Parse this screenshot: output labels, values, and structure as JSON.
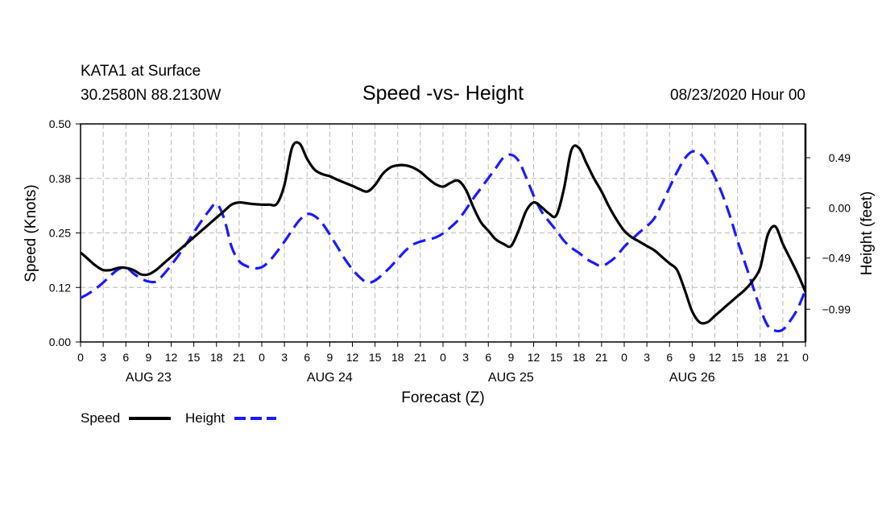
{
  "header": {
    "station": "KATA1 at Surface",
    "location": "30.2580N 88.2130W",
    "title": "Speed -vs- Height",
    "datetime": "08/23/2020 Hour 00"
  },
  "chart_data": {
    "type": "line",
    "title": "Speed -vs- Height",
    "xlabel": "Forecast (Z)",
    "ylabel_left": "Speed (Knots)",
    "ylabel_right": "Height (feet)",
    "x_unit": "hours from 08/23 00Z",
    "xlim": [
      0,
      96
    ],
    "ylim_left": [
      0,
      0.5
    ],
    "ylim_right": [
      -1.31,
      0.82
    ],
    "left_ticks": [
      {
        "value": 0,
        "label": "0.00"
      },
      {
        "value": 0.125,
        "label": "0.12"
      },
      {
        "value": 0.25,
        "label": "0.25"
      },
      {
        "value": 0.375,
        "label": "0.38"
      },
      {
        "value": 0.5,
        "label": "0.50"
      }
    ],
    "right_ticks": [
      {
        "value": -0.99,
        "label": "−0.99"
      },
      {
        "value": -0.49,
        "label": "−0.49"
      },
      {
        "value": 0.0,
        "label": "0.00"
      },
      {
        "value": 0.49,
        "label": "0.49"
      }
    ],
    "hour_ticks": [
      "0",
      "3",
      "6",
      "9",
      "12",
      "15",
      "18",
      "21",
      "0",
      "3",
      "6",
      "9",
      "12",
      "15",
      "18",
      "21",
      "0",
      "3",
      "6",
      "9",
      "12",
      "15",
      "18",
      "21",
      "0",
      "3",
      "6",
      "9",
      "12",
      "15",
      "18",
      "21",
      "0"
    ],
    "day_labels": [
      {
        "label": "AUG 23",
        "x": 9
      },
      {
        "label": "AUG 24",
        "x": 33
      },
      {
        "label": "AUG 25",
        "x": 57
      },
      {
        "label": "AUG 26",
        "x": 81
      }
    ],
    "grid": true,
    "series": [
      {
        "name": "Speed",
        "axis": "left",
        "color": "#000000",
        "dash": "solid",
        "x": [
          0,
          1,
          2,
          3,
          4,
          5,
          6,
          7,
          8,
          9,
          10,
          11,
          12,
          13,
          14,
          15,
          16,
          17,
          18,
          19,
          20,
          21,
          22,
          23,
          24,
          25,
          26,
          27,
          28,
          29,
          30,
          31,
          32,
          33,
          34,
          35,
          36,
          37,
          38,
          39,
          40,
          41,
          42,
          43,
          44,
          45,
          46,
          47,
          48,
          49,
          50,
          51,
          52,
          53,
          54,
          55,
          56,
          57,
          58,
          59,
          60,
          61,
          62,
          63,
          64,
          65,
          66,
          67,
          68,
          69,
          70,
          71,
          72,
          73,
          74,
          75,
          76,
          77,
          78,
          79,
          80,
          81,
          82,
          83,
          84,
          85,
          86,
          87,
          88,
          89,
          90,
          91,
          92,
          93,
          94,
          95,
          96
        ],
        "values": [
          0.205,
          0.19,
          0.175,
          0.165,
          0.165,
          0.17,
          0.17,
          0.165,
          0.155,
          0.155,
          0.165,
          0.18,
          0.195,
          0.21,
          0.225,
          0.24,
          0.255,
          0.27,
          0.285,
          0.3,
          0.315,
          0.32,
          0.318,
          0.316,
          0.315,
          0.315,
          0.317,
          0.36,
          0.445,
          0.455,
          0.42,
          0.395,
          0.385,
          0.38,
          0.372,
          0.365,
          0.358,
          0.35,
          0.345,
          0.36,
          0.385,
          0.4,
          0.405,
          0.405,
          0.4,
          0.39,
          0.375,
          0.362,
          0.356,
          0.365,
          0.37,
          0.35,
          0.31,
          0.275,
          0.255,
          0.235,
          0.225,
          0.22,
          0.255,
          0.3,
          0.32,
          0.31,
          0.295,
          0.29,
          0.35,
          0.44,
          0.445,
          0.41,
          0.375,
          0.345,
          0.31,
          0.28,
          0.255,
          0.24,
          0.23,
          0.22,
          0.21,
          0.195,
          0.18,
          0.165,
          0.12,
          0.07,
          0.045,
          0.045,
          0.06,
          0.075,
          0.09,
          0.105,
          0.12,
          0.14,
          0.17,
          0.245,
          0.265,
          0.225,
          0.19,
          0.155,
          0.115
        ]
      },
      {
        "name": "Height",
        "axis": "right",
        "color": "#1a1aff",
        "dash": "dashed",
        "x": [
          0,
          1,
          2,
          3,
          4,
          5,
          6,
          7,
          8,
          9,
          10,
          11,
          12,
          13,
          14,
          15,
          16,
          17,
          18,
          19,
          20,
          21,
          22,
          23,
          24,
          25,
          26,
          27,
          28,
          29,
          30,
          31,
          32,
          33,
          34,
          35,
          36,
          37,
          38,
          39,
          40,
          41,
          42,
          43,
          44,
          45,
          46,
          47,
          48,
          49,
          50,
          51,
          52,
          53,
          54,
          55,
          56,
          57,
          58,
          59,
          60,
          61,
          62,
          63,
          64,
          65,
          66,
          67,
          68,
          69,
          70,
          71,
          72,
          73,
          74,
          75,
          76,
          77,
          78,
          79,
          80,
          81,
          82,
          83,
          84,
          85,
          86,
          87,
          88,
          89,
          90,
          91,
          92,
          93,
          94,
          95,
          96
        ],
        "values": [
          -0.88,
          -0.84,
          -0.79,
          -0.73,
          -0.66,
          -0.6,
          -0.58,
          -0.64,
          -0.69,
          -0.72,
          -0.72,
          -0.65,
          -0.56,
          -0.46,
          -0.35,
          -0.24,
          -0.13,
          -0.03,
          0.04,
          -0.1,
          -0.38,
          -0.52,
          -0.57,
          -0.59,
          -0.58,
          -0.52,
          -0.43,
          -0.33,
          -0.22,
          -0.12,
          -0.06,
          -0.08,
          -0.15,
          -0.26,
          -0.38,
          -0.5,
          -0.6,
          -0.68,
          -0.73,
          -0.71,
          -0.65,
          -0.58,
          -0.5,
          -0.42,
          -0.36,
          -0.33,
          -0.31,
          -0.29,
          -0.25,
          -0.19,
          -0.12,
          -0.02,
          0.09,
          0.19,
          0.29,
          0.39,
          0.49,
          0.52,
          0.46,
          0.3,
          0.12,
          -0.03,
          -0.13,
          -0.22,
          -0.32,
          -0.39,
          -0.44,
          -0.5,
          -0.54,
          -0.57,
          -0.53,
          -0.47,
          -0.38,
          -0.31,
          -0.24,
          -0.18,
          -0.1,
          0.04,
          0.2,
          0.35,
          0.48,
          0.55,
          0.53,
          0.44,
          0.3,
          0.13,
          -0.08,
          -0.32,
          -0.54,
          -0.76,
          -0.98,
          -1.15,
          -1.2,
          -1.19,
          -1.1,
          -0.98,
          -0.8
        ]
      }
    ],
    "legend": {
      "placement": "bottom-left",
      "entries": [
        {
          "label": "Speed",
          "color": "#000000",
          "dash": "solid"
        },
        {
          "label": "Height",
          "color": "#1a1aff",
          "dash": "dashed"
        }
      ]
    }
  }
}
